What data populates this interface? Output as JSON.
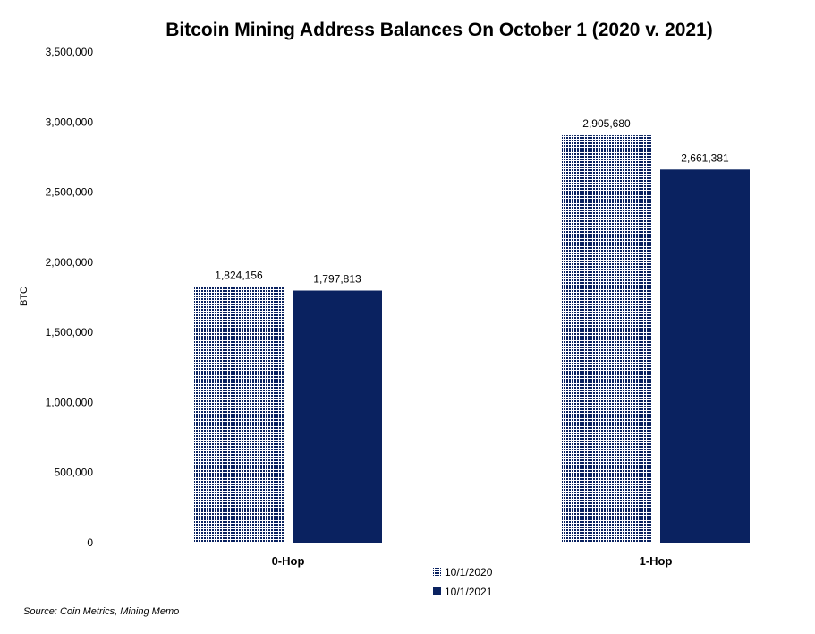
{
  "chart_data": {
    "type": "bar",
    "title": "Bitcoin Mining Address Balances On October 1 (2020 v. 2021)",
    "xlabel": "",
    "ylabel": "BTC",
    "ylim": [
      0,
      3500000
    ],
    "yticks": [
      0,
      500000,
      1000000,
      1500000,
      2000000,
      2500000,
      3000000,
      3500000
    ],
    "ytick_labels": [
      "0",
      "500,000",
      "1,000,000",
      "1,500,000",
      "2,000,000",
      "2,500,000",
      "3,000,000",
      "3,500,000"
    ],
    "categories": [
      "0-Hop",
      "1-Hop"
    ],
    "series": [
      {
        "name": "10/1/2020",
        "values": [
          1824156,
          2905680
        ],
        "labels": [
          "1,824,156",
          "2,905,680"
        ],
        "color": "#0a2260",
        "pattern": "dotted"
      },
      {
        "name": "10/1/2021",
        "values": [
          1797813,
          2661381
        ],
        "labels": [
          "1,797,813",
          "2,661,381"
        ],
        "color": "#0a2260",
        "pattern": "solid"
      }
    ],
    "grid": false,
    "legend": "bottom-center",
    "source": "Source: Coin Metrics, Mining Memo"
  }
}
